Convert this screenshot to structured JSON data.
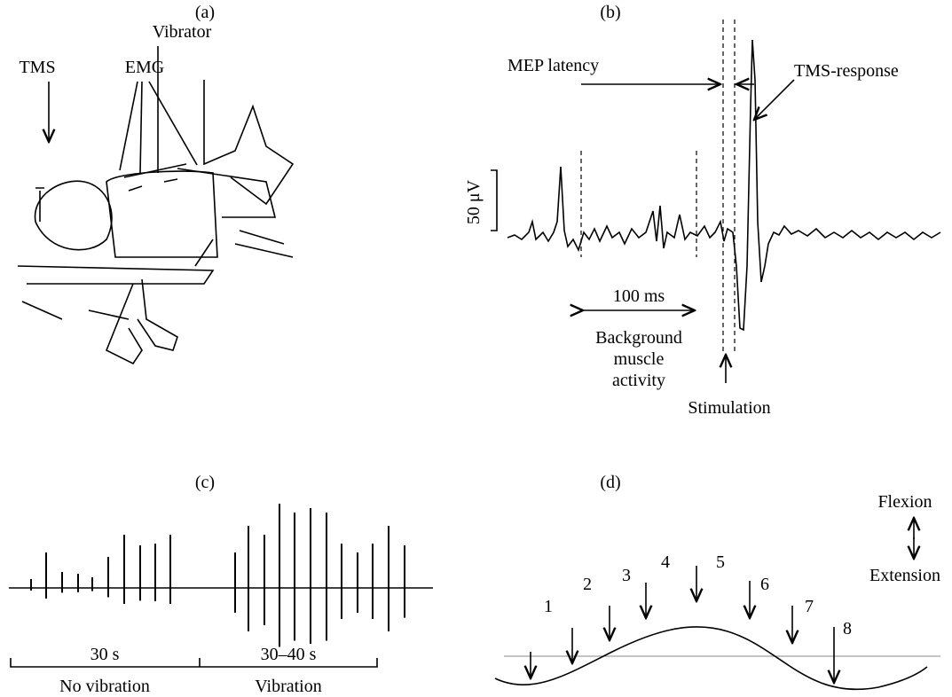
{
  "panel_a": {
    "label": "(a)",
    "tms": "TMS",
    "emg": "EMG",
    "vibrator": "Vibrator"
  },
  "panel_b": {
    "label": "(b)",
    "mep_latency": "MEP latency",
    "tms_response": "TMS-response",
    "scale": "50 μV",
    "interval": "100 ms",
    "background": [
      "Background",
      "muscle",
      "activity"
    ],
    "stimulation": "Stimulation"
  },
  "panel_c": {
    "label": "(c)",
    "period_1": "30 s",
    "period_2": "30–40 s",
    "condition_1": "No vibration",
    "condition_2": "Vibration"
  },
  "panel_d": {
    "label": "(d)",
    "flexion": "Flexion",
    "extension": "Extension",
    "positions": [
      "1",
      "2",
      "3",
      "4",
      "5",
      "6",
      "7",
      "8"
    ]
  }
}
